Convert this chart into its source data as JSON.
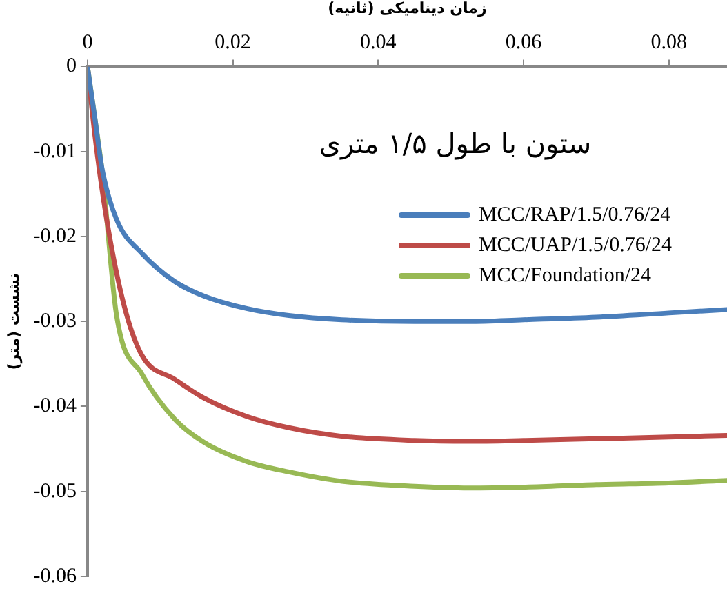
{
  "chart_data": {
    "type": "line",
    "title": "ستون با طول ۱/۵ متری",
    "xlabel": "زمان دینامیکی (ثانیه)",
    "ylabel": "نشست (متر)",
    "xlim": [
      0,
      0.088
    ],
    "xticks": [
      0,
      0.02,
      0.04,
      0.06,
      0.08
    ],
    "ylim": [
      -0.06,
      0
    ],
    "yticks": [
      0,
      -0.01,
      -0.02,
      -0.03,
      -0.04,
      -0.05,
      -0.06
    ],
    "grid": false,
    "legend": "top right",
    "marker": "none",
    "line_style": "solid",
    "series": [
      {
        "name": "MCC/RAP/1.5/0.76/24",
        "color": "#4a7ebb",
        "x": [
          0,
          0.001,
          0.002,
          0.004,
          0.0075,
          0.012,
          0.016,
          0.022,
          0.0277,
          0.035,
          0.045,
          0.0525,
          0.06,
          0.07,
          0.08,
          0.088
        ],
        "values": [
          0,
          -0.006,
          -0.012,
          -0.018,
          -0.022,
          -0.0253,
          -0.027,
          -0.0285,
          -0.0293,
          -0.0298,
          -0.03,
          -0.03,
          -0.0298,
          -0.0295,
          -0.029,
          -0.0286
        ]
      },
      {
        "name": "MCC/UAP/1.5/0.76/24",
        "color": "#be4b48",
        "x": [
          0,
          0.001,
          0.0026,
          0.005,
          0.0075,
          0.012,
          0.016,
          0.022,
          0.0277,
          0.035,
          0.045,
          0.0525,
          0.06,
          0.07,
          0.08,
          0.088
        ],
        "values": [
          0,
          -0.008,
          -0.0178,
          -0.028,
          -0.034,
          -0.0368,
          -0.039,
          -0.0412,
          -0.0425,
          -0.0435,
          -0.044,
          -0.0441,
          -0.044,
          -0.0438,
          -0.0436,
          -0.0434
        ]
      },
      {
        "name": "MCC/Foundation/24",
        "color": "#98b954",
        "x": [
          0,
          0.001,
          0.002,
          0.004,
          0.0075,
          0.012,
          0.016,
          0.022,
          0.0277,
          0.035,
          0.045,
          0.0525,
          0.06,
          0.07,
          0.08,
          0.088
        ],
        "values": [
          0,
          -0.006,
          -0.0122,
          -0.0293,
          -0.0362,
          -0.0415,
          -0.0442,
          -0.0465,
          -0.0477,
          -0.0488,
          -0.0494,
          -0.0496,
          -0.0495,
          -0.0492,
          -0.049,
          -0.0487
        ]
      }
    ]
  }
}
